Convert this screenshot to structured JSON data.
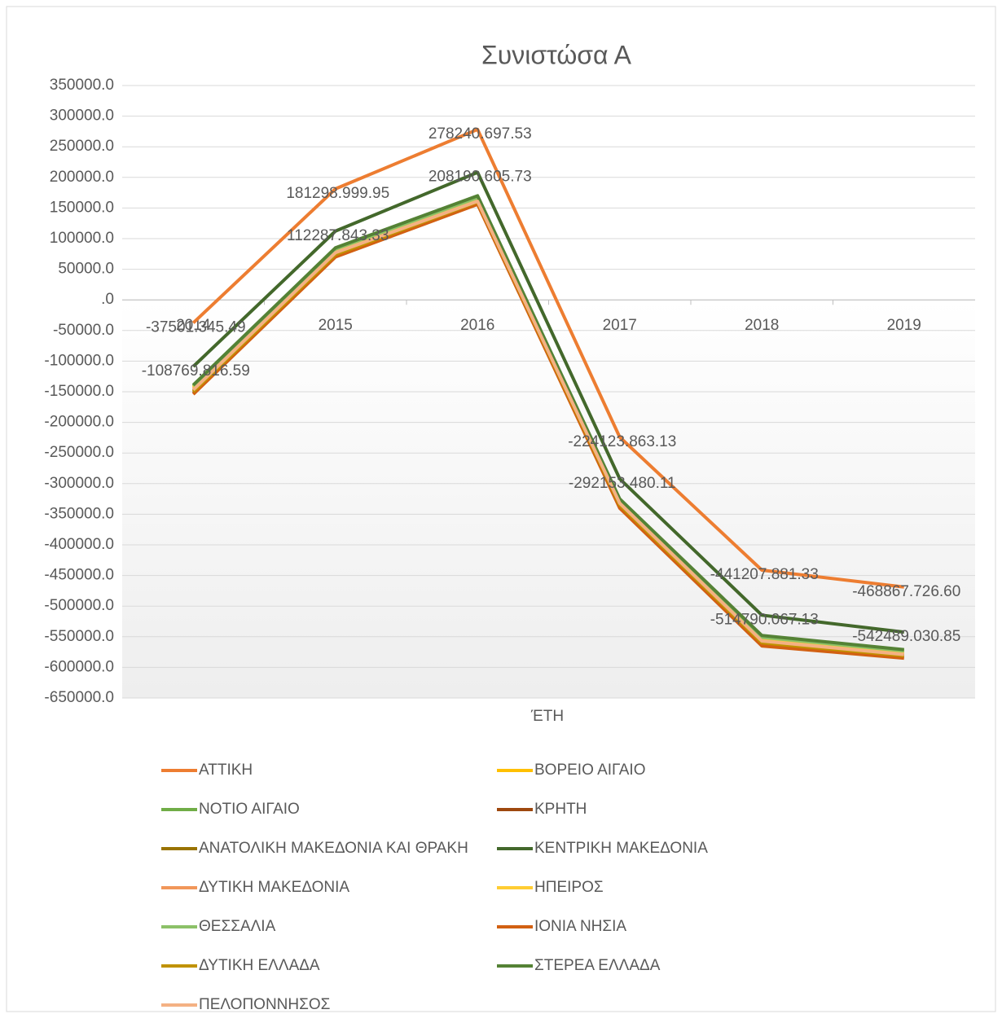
{
  "chart_data": {
    "type": "line",
    "title": "Συνιστώσα Α",
    "x_label": "ΈΤΗ",
    "categories": [
      "2014",
      "2015",
      "2016",
      "2017",
      "2018",
      "2019"
    ],
    "ylim": [
      -650000,
      350000
    ],
    "yticks": [
      {
        "value": 350000,
        "label": "350000.0"
      },
      {
        "value": 300000,
        "label": "300000.0"
      },
      {
        "value": 250000,
        "label": "250000.0"
      },
      {
        "value": 200000,
        "label": "200000.0"
      },
      {
        "value": 150000,
        "label": "150000.0"
      },
      {
        "value": 100000,
        "label": "100000.0"
      },
      {
        "value": 50000,
        "label": "50000.0"
      },
      {
        "value": 0,
        "label": ".0"
      },
      {
        "value": -50000,
        "label": "-50000.0"
      },
      {
        "value": -100000,
        "label": "-100000.0"
      },
      {
        "value": -150000,
        "label": "-150000.0"
      },
      {
        "value": -200000,
        "label": "-200000.0"
      },
      {
        "value": -250000,
        "label": "-250000.0"
      },
      {
        "value": -300000,
        "label": "-300000.0"
      },
      {
        "value": -350000,
        "label": "-350000.0"
      },
      {
        "value": -400000,
        "label": "-400000.0"
      },
      {
        "value": -450000,
        "label": "-450000.0"
      },
      {
        "value": -500000,
        "label": "-500000.0"
      },
      {
        "value": -550000,
        "label": "-550000.0"
      },
      {
        "value": -600000,
        "label": "-600000.0"
      },
      {
        "value": -650000,
        "label": "-650000.0"
      }
    ],
    "grid": true,
    "legend": "bottom",
    "series": [
      {
        "name": "ΑΤΤΙΚΗ",
        "color": "#ED7D31",
        "values": [
          -37501,
          181299,
          278241,
          -224124,
          -441208,
          -468868
        ],
        "value_labels": [
          "-37501.345.49",
          "181298.999.95",
          "278240.697.53",
          "-224123.863.13",
          "-441207.881.33",
          "-468867.726.60"
        ]
      },
      {
        "name": "ΒΟΡΕΙΟ ΑΙΓΑΙΟ",
        "color": "#FFC000",
        "values": [
          -142000,
          80000,
          165000,
          -330000,
          -555000,
          -575000
        ]
      },
      {
        "name": "ΝΟΤΙΟ ΑΙΓΑΙΟ",
        "color": "#70AD47",
        "values": [
          -140000,
          84000,
          168000,
          -326000,
          -550000,
          -572000
        ]
      },
      {
        "name": "ΚΡΗΤΗ",
        "color": "#9E480E",
        "values": [
          -152000,
          72000,
          158000,
          -338000,
          -562000,
          -583000
        ]
      },
      {
        "name": "ΑΝΑΤΟΛΙΚΗ ΜΑΚΕΔΟΝΙΑ ΚΑΙ ΘΡΑΚΗ",
        "color": "#997300",
        "values": [
          -148000,
          76000,
          162000,
          -333000,
          -558000,
          -580000
        ]
      },
      {
        "name": "ΚΕΝΤΡΙΚΗ ΜΑΚΕΔΟΝΙΑ",
        "color": "#43682B",
        "values": [
          -108770,
          112288,
          208191,
          -292153,
          -514790,
          -542489
        ],
        "value_labels": [
          "-108769.816.59",
          "112287.843.33",
          "208190.605.73",
          "-292153.480.11",
          "-514790.067.13",
          "-542489.030.85"
        ]
      },
      {
        "name": "ΔΥΤΙΚΗ ΜΑΚΕΔΟΝΙΑ",
        "color": "#F1975A",
        "values": [
          -145000,
          78000,
          163000,
          -331000,
          -556000,
          -577000
        ]
      },
      {
        "name": "ΗΠΕΙΡΟΣ",
        "color": "#FFCD33",
        "values": [
          -143000,
          81000,
          166000,
          -329000,
          -553000,
          -575000
        ]
      },
      {
        "name": "ΘΕΣΣΑΛΙΑ",
        "color": "#8CC168",
        "values": [
          -141000,
          83000,
          167000,
          -327000,
          -551000,
          -573000
        ]
      },
      {
        "name": "ΙΟΝΙΑ ΝΗΣΙΑ",
        "color": "#D26012",
        "values": [
          -154000,
          70000,
          156000,
          -340000,
          -565000,
          -585000
        ]
      },
      {
        "name": "ΔΥΤΙΚΗ ΕΛΛΑΔΑ",
        "color": "#C09200",
        "values": [
          -150000,
          74000,
          160000,
          -335000,
          -560000,
          -581000
        ]
      },
      {
        "name": "ΣΤΕΡΕΑ ΕΛΛΑΔΑ",
        "color": "#548235",
        "values": [
          -139000,
          85000,
          170000,
          -325000,
          -548000,
          -571000
        ]
      },
      {
        "name": "ΠΕΛΟΠΟΝΝΗΣΟΣ",
        "color": "#F4B183",
        "values": [
          -147000,
          77000,
          161000,
          -332000,
          -557000,
          -579000
        ]
      }
    ]
  }
}
